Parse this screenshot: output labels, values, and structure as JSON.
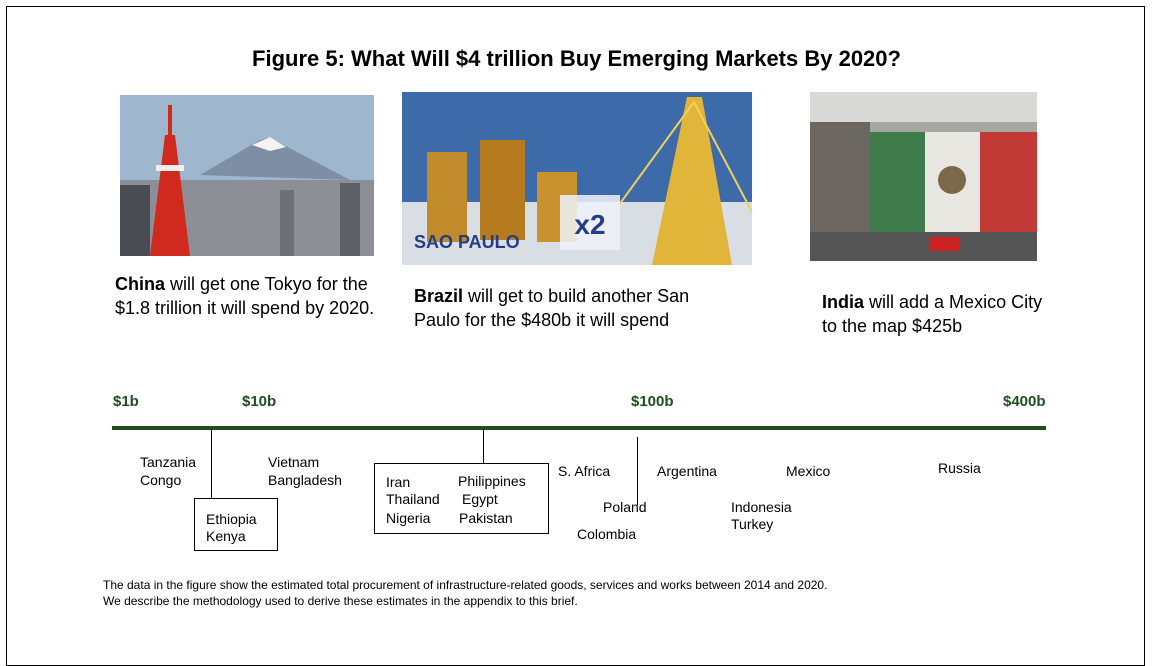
{
  "title": "Figure 5: What Will $4 trillion Buy Emerging Markets By 2020?",
  "panels": [
    {
      "country": "China",
      "caption": " will get one Tokyo for the $1.8 trillion it will spend by 2020."
    },
    {
      "country": "Brazil",
      "caption": " will get to build another San Paulo for the $480b it will spend",
      "image_label": "SAO PAULO",
      "image_badge": "x2"
    },
    {
      "country": "India",
      "caption": " will add a Mexico City to the map $425b"
    }
  ],
  "scale": {
    "labels": [
      "$1b",
      "$10b",
      "$100b",
      "$400b"
    ]
  },
  "markets": [
    "Tanzania",
    "Congo",
    "Vietnam",
    "Bangladesh",
    "Ethiopia",
    "Kenya",
    "Iran",
    "Thailand",
    "Nigeria",
    "Philippines",
    "Egypt",
    "Pakistan",
    "S. Africa",
    "Poland",
    "Colombia",
    "Argentina",
    "Mexico",
    "Indonesia",
    "Turkey",
    "Russia"
  ],
  "footnote": [
    "The data in the figure show the estimated total procurement of infrastructure-related goods, services and works between 2014 and 2020.",
    "We describe the methodology used to derive these estimates in the appendix to this brief."
  ]
}
